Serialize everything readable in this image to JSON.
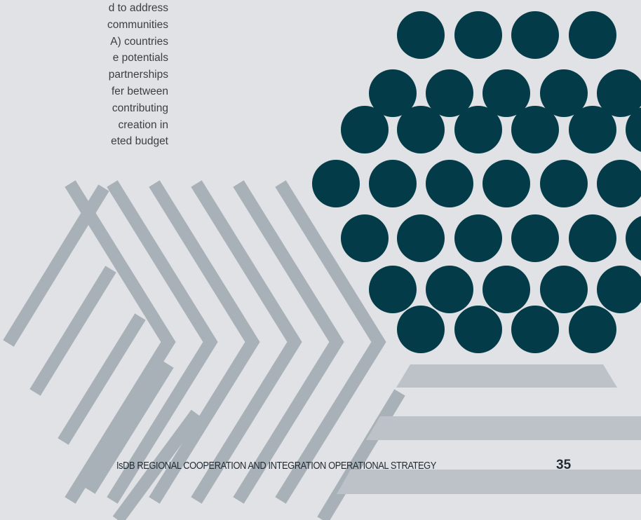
{
  "document": {
    "body_lines": [
      "d to address",
      "communities",
      "A) countries",
      "e potentials",
      "partnerships",
      "fer between",
      "contributing",
      "creation in",
      "eted budget"
    ],
    "footer_title": "IsDB REGIONAL COOPERATION AND INTEGRATION OPERATIONAL STRATEGY",
    "page_number": "35"
  },
  "colors": {
    "background": "#e1e2e5",
    "dots": "#033c48",
    "stripes": "#a9b1b8",
    "bars": "#bcc2c7"
  }
}
